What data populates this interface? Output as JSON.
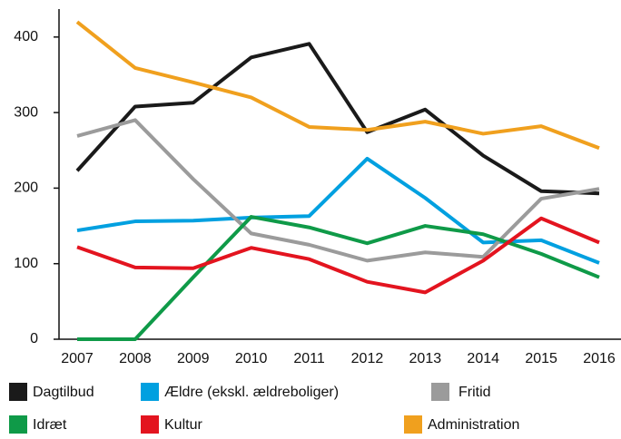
{
  "chart_data": {
    "type": "line",
    "categories": [
      "2007",
      "2008",
      "2009",
      "2010",
      "2011",
      "2012",
      "2013",
      "2014",
      "2015",
      "2016"
    ],
    "series": [
      {
        "name": "Dagtilbud",
        "color": "#1a1a1a",
        "values": [
          223,
          308,
          313,
          373,
          391,
          274,
          304,
          243,
          196,
          193
        ]
      },
      {
        "name": "Ældre (ekskl. ældreboliger)",
        "color": "#00a0e0",
        "values": [
          144,
          156,
          157,
          161,
          163,
          239,
          187,
          128,
          131,
          101
        ]
      },
      {
        "name": "Fritid",
        "color": "#9b9b9b",
        "values": [
          269,
          290,
          212,
          140,
          125,
          104,
          115,
          109,
          186,
          199
        ]
      },
      {
        "name": "Idræt",
        "color": "#0f9a48",
        "values": [
          0,
          0,
          82,
          162,
          148,
          127,
          150,
          139,
          113,
          82
        ]
      },
      {
        "name": "Kultur",
        "color": "#e3141f",
        "values": [
          122,
          95,
          94,
          121,
          106,
          76,
          62,
          104,
          160,
          128
        ]
      },
      {
        "name": "Administration",
        "color": "#f0a01e",
        "values": [
          420,
          359,
          340,
          320,
          281,
          277,
          288,
          272,
          282,
          253
        ]
      }
    ],
    "ylim": [
      0,
      437
    ],
    "yticks": [
      0,
      100,
      200,
      300,
      400
    ],
    "grid": false
  }
}
